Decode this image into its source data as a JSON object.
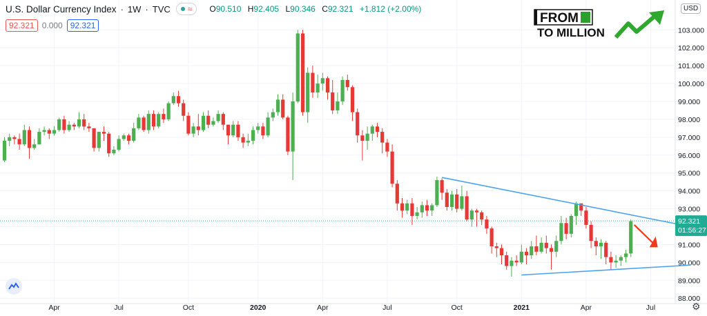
{
  "header": {
    "title": "U.S. Dollar Currency Index",
    "interval": "1W",
    "source": "TVC",
    "ohlc": {
      "o_label": "O",
      "o_value": "90.510",
      "h_label": "H",
      "h_value": "92.405",
      "l_label": "L",
      "l_value": "90.346",
      "c_label": "C",
      "c_value": "92.321",
      "change": "+1.812 (+2.00%)"
    }
  },
  "boxes": {
    "left": "92.321",
    "middle": "0.000",
    "right": "92.321"
  },
  "currency": "USD",
  "brand": {
    "line1": "FROM",
    "line2": "TO MILLION"
  },
  "price_label": {
    "price": "92.321",
    "countdown": "01:56:27"
  },
  "colors": {
    "up": "#4caf50",
    "down": "#e53935",
    "trendline": "#4aa3f0",
    "arrow": "#f0381a",
    "price_line": "#22ab94"
  },
  "chart_data": {
    "type": "candlestick",
    "title": "U.S. Dollar Currency Index",
    "ylim": [
      87.7,
      104.4
    ],
    "y_ticks": [
      88,
      89,
      90,
      91,
      92,
      93,
      94,
      95,
      96,
      97,
      98,
      99,
      100,
      101,
      102,
      103
    ],
    "y_tick_labels": [
      "88.000",
      "89.000",
      "90.000",
      "91.000",
      "92.000",
      "93.000",
      "94.000",
      "95.000",
      "96.000",
      "97.000",
      "98.000",
      "99.000",
      "100.000",
      "101.000",
      "102.000",
      "103.000"
    ],
    "x_ticks": [
      {
        "label": "Apr",
        "index": 10
      },
      {
        "label": "Jul",
        "index": 23
      },
      {
        "label": "Oct",
        "index": 37
      },
      {
        "label": "2020",
        "index": 51
      },
      {
        "label": "Apr",
        "index": 64
      },
      {
        "label": "Jul",
        "index": 77
      },
      {
        "label": "Oct",
        "index": 91
      },
      {
        "label": "2021",
        "index": 104
      },
      {
        "label": "Apr",
        "index": 117
      },
      {
        "label": "Jul",
        "index": 130
      }
    ],
    "candles": [
      [
        95.7,
        96.8,
        97.0,
        95.6
      ],
      [
        96.8,
        97.0,
        97.2,
        96.5
      ],
      [
        97.0,
        96.9,
        97.1,
        96.6
      ],
      [
        96.9,
        96.6,
        97.2,
        96.3
      ],
      [
        96.6,
        97.4,
        97.7,
        96.5
      ],
      [
        97.4,
        96.4,
        97.6,
        95.8
      ],
      [
        96.4,
        96.6,
        96.9,
        96.3
      ],
      [
        96.6,
        97.3,
        97.5,
        96.6
      ],
      [
        97.3,
        97.4,
        97.6,
        97.1
      ],
      [
        97.4,
        97.2,
        97.5,
        96.9
      ],
      [
        97.2,
        97.4,
        97.6,
        97.1
      ],
      [
        97.4,
        98.0,
        98.1,
        97.3
      ],
      [
        98.0,
        97.4,
        98.2,
        97.2
      ],
      [
        97.4,
        97.7,
        97.9,
        97.3
      ],
      [
        97.7,
        97.6,
        97.8,
        97.4
      ],
      [
        97.6,
        98.0,
        98.4,
        97.5
      ],
      [
        98.0,
        97.6,
        98.3,
        97.4
      ],
      [
        97.6,
        97.5,
        97.8,
        97.3
      ],
      [
        97.5,
        96.4,
        97.5,
        96.2
      ],
      [
        96.4,
        97.3,
        97.3,
        96.2
      ],
      [
        97.3,
        97.2,
        97.6,
        96.8
      ],
      [
        97.2,
        96.1,
        97.3,
        95.9
      ],
      [
        96.1,
        96.3,
        96.5,
        96.0
      ],
      [
        96.3,
        96.9,
        97.1,
        96.2
      ],
      [
        96.9,
        97.1,
        97.2,
        96.8
      ],
      [
        97.1,
        96.8,
        97.2,
        96.6
      ],
      [
        96.8,
        97.5,
        97.8,
        96.7
      ],
      [
        97.5,
        98.1,
        98.3,
        97.4
      ],
      [
        98.1,
        97.4,
        98.2,
        97.3
      ],
      [
        97.4,
        98.3,
        98.5,
        97.2
      ],
      [
        98.3,
        97.6,
        98.5,
        97.4
      ],
      [
        97.6,
        98.3,
        98.4,
        97.5
      ],
      [
        98.3,
        98.0,
        98.6,
        97.8
      ],
      [
        98.0,
        98.9,
        99.0,
        97.9
      ],
      [
        98.9,
        99.3,
        99.5,
        98.8
      ],
      [
        99.3,
        98.9,
        99.6,
        98.7
      ],
      [
        98.9,
        98.2,
        99.1,
        97.9
      ],
      [
        98.2,
        97.2,
        98.4,
        97.1
      ],
      [
        97.2,
        97.6,
        97.8,
        97.0
      ],
      [
        97.6,
        97.4,
        98.3,
        97.1
      ],
      [
        97.4,
        98.2,
        98.4,
        97.3
      ],
      [
        98.2,
        97.7,
        98.5,
        97.5
      ],
      [
        97.7,
        97.9,
        98.1,
        97.6
      ],
      [
        97.9,
        98.3,
        98.5,
        97.8
      ],
      [
        98.3,
        97.7,
        98.4,
        97.4
      ],
      [
        97.7,
        97.1,
        97.7,
        96.6
      ],
      [
        97.1,
        97.7,
        97.9,
        97.0
      ],
      [
        97.7,
        97.0,
        97.9,
        96.8
      ],
      [
        97.0,
        96.7,
        97.2,
        96.4
      ],
      [
        96.7,
        96.8,
        97.2,
        96.5
      ],
      [
        96.8,
        97.4,
        97.6,
        96.6
      ],
      [
        97.4,
        97.6,
        97.8,
        97.2
      ],
      [
        97.6,
        97.1,
        97.8,
        96.9
      ],
      [
        97.1,
        98.1,
        98.4,
        97.0
      ],
      [
        98.1,
        98.4,
        98.6,
        97.9
      ],
      [
        98.4,
        99.1,
        99.4,
        98.2
      ],
      [
        99.1,
        98.1,
        99.4,
        98.0
      ],
      [
        98.1,
        96.2,
        98.2,
        96.0
      ],
      [
        96.2,
        99.0,
        99.5,
        94.6
      ],
      [
        99.0,
        102.8,
        103.0,
        98.9
      ],
      [
        102.8,
        98.4,
        103.0,
        98.2
      ],
      [
        98.4,
        100.6,
        100.9,
        97.8
      ],
      [
        100.6,
        99.5,
        101.0,
        99.2
      ],
      [
        99.5,
        100.0,
        100.5,
        99.2
      ],
      [
        100.0,
        100.3,
        100.6,
        99.6
      ],
      [
        100.3,
        99.5,
        100.4,
        99.1
      ],
      [
        99.5,
        98.5,
        100.2,
        98.3
      ],
      [
        98.5,
        99.0,
        99.5,
        98.3
      ],
      [
        99.0,
        100.2,
        100.4,
        98.8
      ],
      [
        100.2,
        99.8,
        100.5,
        99.6
      ],
      [
        99.8,
        98.4,
        99.9,
        97.9
      ],
      [
        98.4,
        97.1,
        98.6,
        96.7
      ],
      [
        97.1,
        96.8,
        97.4,
        95.7
      ],
      [
        96.8,
        97.2,
        97.6,
        96.3
      ],
      [
        97.2,
        97.6,
        97.7,
        96.8
      ],
      [
        97.6,
        97.3,
        97.8,
        97.0
      ],
      [
        97.3,
        96.7,
        97.5,
        96.1
      ],
      [
        96.7,
        96.2,
        96.9,
        95.9
      ],
      [
        96.2,
        94.4,
        96.6,
        94.2
      ],
      [
        94.4,
        93.3,
        94.6,
        92.9
      ],
      [
        93.3,
        92.9,
        93.6,
        92.5
      ],
      [
        92.9,
        93.3,
        93.5,
        92.7
      ],
      [
        93.3,
        92.6,
        93.6,
        92.1
      ],
      [
        92.6,
        92.8,
        93.1,
        92.4
      ],
      [
        92.8,
        93.2,
        93.4,
        92.5
      ],
      [
        93.2,
        92.9,
        93.5,
        92.6
      ],
      [
        92.9,
        93.2,
        93.3,
        92.6
      ],
      [
        93.2,
        94.6,
        94.8,
        93.1
      ],
      [
        94.6,
        93.9,
        94.7,
        93.5
      ],
      [
        93.9,
        93.1,
        94.1,
        92.9
      ],
      [
        93.1,
        93.8,
        94.0,
        92.9
      ],
      [
        93.8,
        93.0,
        94.1,
        92.8
      ],
      [
        93.0,
        93.7,
        94.3,
        92.9
      ],
      [
        93.7,
        92.4,
        94.0,
        92.3
      ],
      [
        92.4,
        92.9,
        93.0,
        92.0
      ],
      [
        92.9,
        92.8,
        93.0,
        92.0
      ],
      [
        92.8,
        92.4,
        92.9,
        92.1
      ],
      [
        92.4,
        91.9,
        92.6,
        91.6
      ],
      [
        91.9,
        90.9,
        92.0,
        90.5
      ],
      [
        90.9,
        90.8,
        91.1,
        90.3
      ],
      [
        90.8,
        90.4,
        91.0,
        89.9
      ],
      [
        90.4,
        89.8,
        90.6,
        89.6
      ],
      [
        89.8,
        90.1,
        90.3,
        89.2
      ],
      [
        90.1,
        90.0,
        90.4,
        89.8
      ],
      [
        90.0,
        90.6,
        91.0,
        89.9
      ],
      [
        90.6,
        90.4,
        90.8,
        89.9
      ],
      [
        90.4,
        90.9,
        91.2,
        90.2
      ],
      [
        90.9,
        90.6,
        91.5,
        90.4
      ],
      [
        90.6,
        91.1,
        91.4,
        90.5
      ],
      [
        91.1,
        90.8,
        91.5,
        90.5
      ],
      [
        90.8,
        90.6,
        91.0,
        89.6
      ],
      [
        90.6,
        91.2,
        91.5,
        90.3
      ],
      [
        91.2,
        92.2,
        92.6,
        91.0
      ],
      [
        92.2,
        91.6,
        92.5,
        91.3
      ],
      [
        91.6,
        92.6,
        92.7,
        91.4
      ],
      [
        92.6,
        93.3,
        93.4,
        92.1
      ],
      [
        93.3,
        92.9,
        93.3,
        92.6
      ],
      [
        92.9,
        92.1,
        93.1,
        91.9
      ],
      [
        92.1,
        91.2,
        92.3,
        90.8
      ],
      [
        91.2,
        90.9,
        91.4,
        90.4
      ],
      [
        90.9,
        91.1,
        91.3,
        90.2
      ],
      [
        91.1,
        90.3,
        91.2,
        89.9
      ],
      [
        90.3,
        90.0,
        90.6,
        89.6
      ],
      [
        90.0,
        90.1,
        90.4,
        89.7
      ],
      [
        90.1,
        90.3,
        90.4,
        89.8
      ],
      [
        90.3,
        90.5,
        90.7,
        90.0
      ],
      [
        90.5,
        92.3,
        92.4,
        90.3
      ]
    ],
    "trendlines": [
      {
        "from": {
          "index": 88,
          "value": 94.75
        },
        "to": {
          "index": 138,
          "value": 92.0
        }
      },
      {
        "from": {
          "index": 104,
          "value": 89.3
        },
        "to": {
          "index": 138,
          "value": 89.85
        }
      }
    ],
    "current_price": 92.321
  }
}
